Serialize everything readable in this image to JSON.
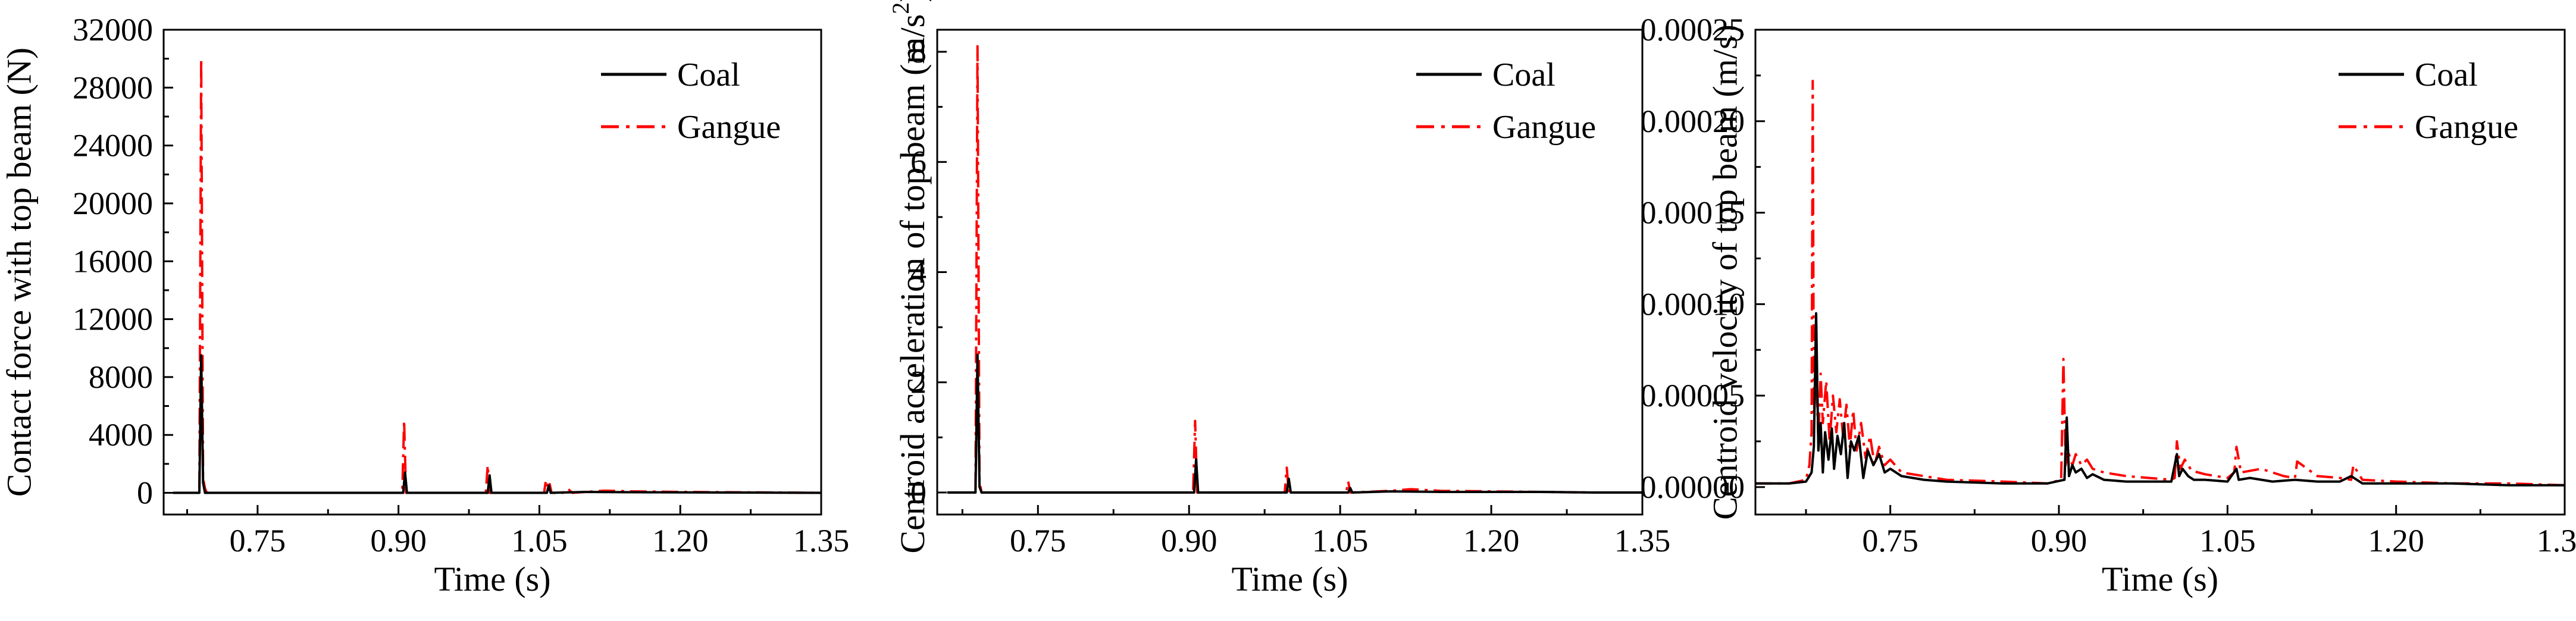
{
  "colors": {
    "coal": "#000000",
    "gangue": "#ff0000",
    "axis": "#000000",
    "background": "#ffffff"
  },
  "chart_data": [
    {
      "type": "line",
      "xlabel": "Time (s)",
      "ylabel": "Contact force with top beam (N)",
      "xlim": [
        0.65,
        1.35
      ],
      "ylim": [
        -1500,
        32000
      ],
      "xticks": [
        "0.75",
        "0.90",
        "1.05",
        "1.20",
        "1.35"
      ],
      "xtick_values": [
        0.75,
        0.9,
        1.05,
        1.2,
        1.35
      ],
      "yticks": [
        "0",
        "4000",
        "8000",
        "12000",
        "16000",
        "20000",
        "24000",
        "28000",
        "32000"
      ],
      "ytick_values": [
        0,
        4000,
        8000,
        12000,
        16000,
        20000,
        24000,
        28000,
        32000
      ],
      "grid": false,
      "legend_position": "top-right",
      "series": [
        {
          "name": "Coal",
          "style": "solid",
          "x": [
            0.66,
            0.688,
            0.69,
            0.692,
            0.694,
            0.696,
            0.74,
            0.8,
            0.85,
            0.905,
            0.907,
            0.909,
            0.95,
            0.995,
            0.997,
            0.999,
            1.03,
            1.058,
            1.06,
            1.062,
            1.1,
            1.15,
            1.2,
            1.25,
            1.3,
            1.35
          ],
          "y": [
            0,
            0,
            9500,
            700,
            0,
            0,
            0,
            0,
            0,
            0,
            1400,
            0,
            0,
            0,
            1200,
            0,
            0,
            0,
            500,
            0,
            60,
            40,
            30,
            20,
            10,
            0
          ]
        },
        {
          "name": "Gangue",
          "style": "dash-dot",
          "x": [
            0.66,
            0.688,
            0.69,
            0.692,
            0.694,
            0.696,
            0.74,
            0.8,
            0.85,
            0.904,
            0.906,
            0.908,
            0.95,
            0.993,
            0.995,
            0.997,
            1.03,
            1.055,
            1.057,
            1.059,
            1.061,
            1.063,
            1.075,
            1.08,
            1.085,
            1.12,
            1.15,
            1.2,
            1.25,
            1.3,
            1.35
          ],
          "y": [
            0,
            0,
            30000,
            1000,
            300,
            0,
            0,
            0,
            0,
            0,
            5000,
            0,
            0,
            0,
            1900,
            0,
            0,
            0,
            900,
            200,
            600,
            0,
            0,
            300,
            0,
            150,
            100,
            60,
            40,
            20,
            0
          ]
        }
      ]
    },
    {
      "type": "line",
      "xlabel": "Time (s)",
      "ylabel": "Centroid acceleration of top beam (m/s²)",
      "ylabel_main": "Centroid acceleration of top beam (m/s",
      "ylabel_sup": "2",
      "ylabel_end": ")",
      "xlim": [
        0.65,
        1.35
      ],
      "ylim": [
        -0.4,
        8.4
      ],
      "xticks": [
        "0.75",
        "0.90",
        "1.05",
        "1.20",
        "1.35"
      ],
      "xtick_values": [
        0.75,
        0.9,
        1.05,
        1.2,
        1.35
      ],
      "yticks": [
        "0",
        "2",
        "4",
        "6",
        "8"
      ],
      "ytick_values": [
        0,
        2,
        4,
        6,
        8
      ],
      "grid": false,
      "legend_position": "top-right",
      "series": [
        {
          "name": "Coal",
          "style": "solid",
          "x": [
            0.66,
            0.688,
            0.69,
            0.692,
            0.694,
            0.74,
            0.8,
            0.85,
            0.905,
            0.907,
            0.909,
            0.95,
            0.997,
            0.999,
            1.001,
            1.03,
            1.058,
            1.06,
            1.062,
            1.1,
            1.15,
            1.2,
            1.25,
            1.3,
            1.35
          ],
          "y": [
            0,
            0,
            2.5,
            0.1,
            0,
            0,
            0,
            0,
            0,
            0.6,
            0,
            0,
            0,
            0.25,
            0,
            0,
            0,
            0.08,
            0,
            0.02,
            0.01,
            0.01,
            0.01,
            0,
            0
          ]
        },
        {
          "name": "Gangue",
          "style": "dash-dot",
          "x": [
            0.66,
            0.688,
            0.69,
            0.692,
            0.694,
            0.74,
            0.8,
            0.85,
            0.904,
            0.906,
            0.908,
            0.95,
            0.995,
            0.997,
            0.999,
            1.03,
            1.056,
            1.058,
            1.06,
            1.1,
            1.12,
            1.15,
            1.2,
            1.25,
            1.3,
            1.35
          ],
          "y": [
            0,
            0,
            8.1,
            0.2,
            0,
            0,
            0,
            0,
            0,
            1.3,
            0,
            0,
            0,
            0.45,
            0,
            0,
            0,
            0.2,
            0,
            0.03,
            0.06,
            0.03,
            0.02,
            0.01,
            0,
            0
          ]
        }
      ]
    },
    {
      "type": "line",
      "xlabel": "Time (s)",
      "ylabel": "Centroid velocity of top beam (m/s)",
      "xlim": [
        0.63,
        1.35
      ],
      "ylim": [
        -1.5e-05,
        0.00025
      ],
      "xticks": [
        "0.75",
        "0.90",
        "1.05",
        "1.20",
        "1.35"
      ],
      "xtick_values": [
        0.75,
        0.9,
        1.05,
        1.2,
        1.35
      ],
      "yticks": [
        "0.00000",
        "0.00005",
        "0.00010",
        "0.00015",
        "0.00020",
        "0.00025"
      ],
      "ytick_values": [
        0,
        5e-05,
        0.0001,
        0.00015,
        0.0002,
        0.00025
      ],
      "grid": false,
      "legend_position": "top-right",
      "series": [
        {
          "name": "Coal",
          "style": "solid",
          "x": [
            0.63,
            0.66,
            0.675,
            0.68,
            0.682,
            0.684,
            0.686,
            0.688,
            0.69,
            0.692,
            0.695,
            0.698,
            0.7,
            0.703,
            0.706,
            0.709,
            0.712,
            0.715,
            0.718,
            0.722,
            0.726,
            0.73,
            0.735,
            0.74,
            0.745,
            0.75,
            0.76,
            0.78,
            0.8,
            0.85,
            0.89,
            0.905,
            0.907,
            0.909,
            0.912,
            0.915,
            0.92,
            0.925,
            0.93,
            0.94,
            0.96,
            0.98,
            1.0,
            1.005,
            1.007,
            1.01,
            1.015,
            1.02,
            1.03,
            1.05,
            1.058,
            1.06,
            1.07,
            1.09,
            1.11,
            1.13,
            1.15,
            1.16,
            1.17,
            1.2,
            1.25,
            1.3,
            1.35
          ],
          "y": [
            2e-06,
            2e-06,
            3e-06,
            8e-06,
            2.2e-05,
            9.5e-05,
            2e-05,
            3.5e-05,
            8e-06,
            3e-05,
            1.5e-05,
            3.2e-05,
            1e-05,
            2.8e-05,
            1.8e-05,
            3.5e-05,
            5e-06,
            2.5e-05,
            2e-05,
            2.8e-05,
            5e-06,
            2e-05,
            1.2e-05,
            1.8e-05,
            8e-06,
            1e-05,
            6e-06,
            4e-06,
            3e-06,
            2e-06,
            2e-06,
            4e-06,
            3.8e-05,
            6e-06,
            1.2e-05,
            8e-06,
            1e-05,
            5e-06,
            7e-06,
            4e-06,
            3e-06,
            3e-06,
            3e-06,
            1.8e-05,
            6e-06,
            1e-05,
            6e-06,
            4e-06,
            4e-06,
            3e-06,
            1e-05,
            4e-06,
            5e-06,
            3e-06,
            4e-06,
            3e-06,
            3e-06,
            6e-06,
            2e-06,
            2e-06,
            2e-06,
            1e-06,
            1e-06
          ]
        },
        {
          "name": "Gangue",
          "style": "dash-dot",
          "x": [
            0.63,
            0.66,
            0.675,
            0.678,
            0.68,
            0.681,
            0.682,
            0.684,
            0.686,
            0.688,
            0.69,
            0.693,
            0.696,
            0.699,
            0.702,
            0.705,
            0.708,
            0.711,
            0.714,
            0.717,
            0.72,
            0.724,
            0.728,
            0.732,
            0.736,
            0.74,
            0.745,
            0.75,
            0.76,
            0.78,
            0.8,
            0.85,
            0.89,
            0.902,
            0.904,
            0.906,
            0.908,
            0.912,
            0.915,
            0.92,
            0.925,
            0.93,
            0.94,
            0.96,
            0.98,
            1.0,
            1.003,
            1.005,
            1.008,
            1.012,
            1.018,
            1.03,
            1.05,
            1.056,
            1.058,
            1.062,
            1.08,
            1.1,
            1.11,
            1.112,
            1.13,
            1.15,
            1.16,
            1.162,
            1.17,
            1.2,
            1.25,
            1.3,
            1.35
          ],
          "y": [
            2e-06,
            2e-06,
            4e-06,
            1.2e-05,
            3e-05,
            0.000222,
            4e-05,
            6.5e-05,
            2.5e-05,
            6.2e-05,
            3.5e-05,
            5.8e-05,
            2.5e-05,
            5e-05,
            3e-05,
            4.8e-05,
            2.8e-05,
            4.5e-05,
            2.2e-05,
            4.2e-05,
            2e-05,
            3.5e-05,
            1.6e-05,
            2.8e-05,
            1.2e-05,
            2.2e-05,
            1.2e-05,
            1.5e-05,
            8e-06,
            6e-06,
            4e-06,
            3e-06,
            2e-06,
            4e-06,
            7e-05,
            1.2e-05,
            2e-05,
            1.2e-05,
            1.8e-05,
            1.2e-05,
            1.5e-05,
            1e-05,
            8e-06,
            6e-06,
            5e-06,
            4e-06,
            5e-06,
            2.5e-05,
            1e-05,
            1.5e-05,
            9e-06,
            7e-06,
            5e-06,
            8e-06,
            2.2e-05,
            8e-06,
            1e-05,
            6e-06,
            5e-06,
            1.4e-05,
            6e-06,
            5e-06,
            4e-06,
            1.2e-05,
            4e-06,
            3e-06,
            2e-06,
            2e-06,
            1e-06
          ]
        }
      ]
    }
  ]
}
